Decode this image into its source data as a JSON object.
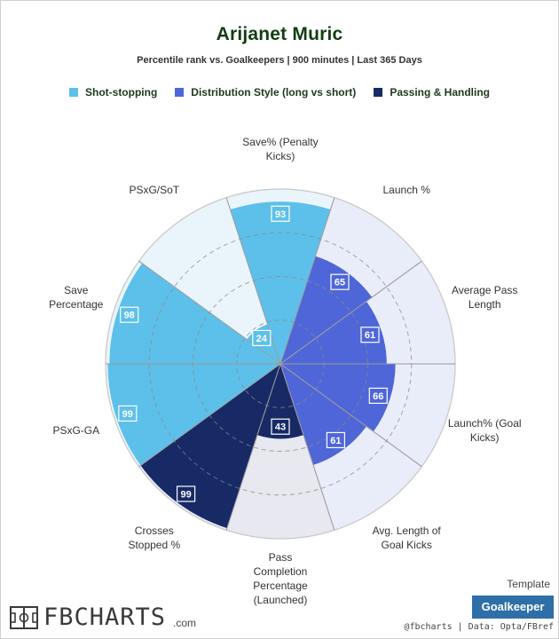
{
  "header": {
    "title": "Arijanet Muric",
    "subtitle": "Percentile rank vs. Goalkeepers | 900 minutes | Last 365 Days"
  },
  "chart_data": {
    "type": "polar-bar",
    "max": 100,
    "grid_rings": [
      25,
      50,
      75,
      100
    ],
    "legend": [
      {
        "name": "Shot-stopping",
        "color": "#5dc0ea",
        "bg": "#e9f5fb"
      },
      {
        "name": "Distribution Style (long vs short)",
        "color": "#4f66d8",
        "bg": "#e9edf9"
      },
      {
        "name": "Passing & Handling",
        "color": "#172a66",
        "bg": "#e8e8f0"
      }
    ],
    "metrics": [
      {
        "label": "Save% (Penalty Kicks)",
        "value": 93,
        "group": 0
      },
      {
        "label": "Launch %",
        "value": 65,
        "group": 1
      },
      {
        "label": "Average Pass Length",
        "value": 61,
        "group": 1
      },
      {
        "label": "Launch% (Goal Kicks)",
        "value": 66,
        "group": 1
      },
      {
        "label": "Avg. Length of Goal Kicks",
        "value": 61,
        "group": 1
      },
      {
        "label": "Pass Completion Percentage (Launched)",
        "value": 43,
        "group": 2
      },
      {
        "label": "Crosses Stopped %",
        "value": 99,
        "group": 2
      },
      {
        "label": "PSxG-GA",
        "value": 99,
        "group": 0
      },
      {
        "label": "Save Percentage",
        "value": 98,
        "group": 0
      },
      {
        "label": "PSxG/SoT",
        "value": 24,
        "group": 0
      }
    ]
  },
  "axis_labels": [
    "Save% (Penalty\nKicks)",
    "Launch %",
    "Average Pass\nLength",
    "Launch% (Goal\nKicks)",
    "Avg. Length of\nGoal Kicks",
    "Pass\nCompletion\nPercentage\n(Launched)",
    "Crosses\nStopped %",
    "PSxG-GA",
    "Save\nPercentage",
    "PSxG/SoT"
  ],
  "footer": {
    "logo_text": "FBCHARTS",
    "logo_suffix": ".com",
    "template_caption": "Template",
    "template_name": "Goalkeeper",
    "credits": "@fbcharts | Data: Opta/FBref"
  }
}
